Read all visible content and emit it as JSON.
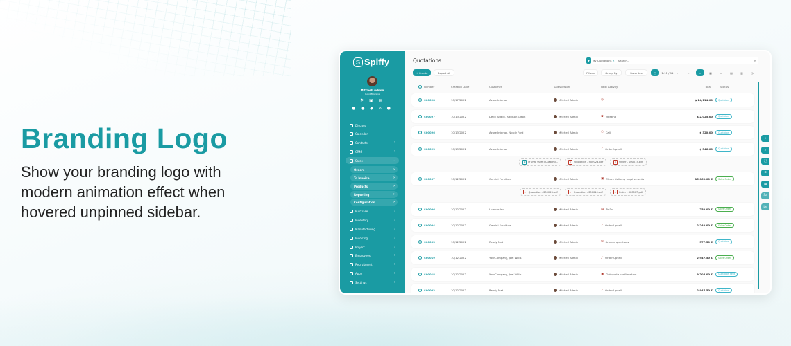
{
  "hero": {
    "title": "Branding Logo",
    "description": "Show your branding logo with modern animation effect when hovered unpinned sidebar."
  },
  "colors": {
    "brand": "#1a9ba3",
    "quotation_badge": "#3fb6c9",
    "sales_order_badge": "#4caf50"
  },
  "sidebar": {
    "logo": "Spiffy",
    "user_name": "Mitchell Admin",
    "greeting": "Good Morning",
    "items": [
      {
        "label": "Discuss",
        "icon": "chat-icon"
      },
      {
        "label": "Calendar",
        "icon": "calendar-icon"
      },
      {
        "label": "Contacts",
        "icon": "contacts-icon",
        "chevron": true
      },
      {
        "label": "CRM",
        "icon": "crm-icon",
        "chevron": true
      },
      {
        "label": "Sales",
        "icon": "sales-icon",
        "chevron": true,
        "active": true
      },
      {
        "label": "Orders",
        "sub": true
      },
      {
        "label": "To Invoice",
        "sub": true
      },
      {
        "label": "Products",
        "sub": true
      },
      {
        "label": "Reporting",
        "sub": true
      },
      {
        "label": "Configuration",
        "sub": true
      },
      {
        "label": "Purchase",
        "icon": "purchase-icon",
        "chevron": true
      },
      {
        "label": "Inventory",
        "icon": "inventory-icon",
        "chevron": true
      },
      {
        "label": "Manufacturing",
        "icon": "manufacturing-icon",
        "chevron": true
      },
      {
        "label": "Invoicing",
        "icon": "invoicing-icon",
        "chevron": true
      },
      {
        "label": "Project",
        "icon": "project-icon",
        "chevron": true
      },
      {
        "label": "Employees",
        "icon": "employees-icon",
        "chevron": true
      },
      {
        "label": "Recruitment",
        "icon": "recruitment-icon",
        "chevron": true
      },
      {
        "label": "Apps",
        "icon": "apps-icon",
        "chevron": true
      },
      {
        "label": "Settings",
        "icon": "settings-icon",
        "chevron": true
      }
    ]
  },
  "header": {
    "title": "Quotations",
    "create": "+ Create",
    "export": "Export All",
    "filter_tag": "My Quotations",
    "search_placeholder": "Search...",
    "filters": "Filters",
    "group_by": "Group By",
    "favorites": "Favorites",
    "pager": "1-11 / 11"
  },
  "columns": {
    "number": "Number",
    "date": "Creation Date",
    "customer": "Customer",
    "salesperson": "Salesperson",
    "activity": "Next Activity",
    "total": "Total",
    "status": "Status"
  },
  "rows": [
    {
      "number": "S00028",
      "date": "10/17/2022",
      "customer": "Azure Interior",
      "salesperson": "Mitchell Admin",
      "activity": "",
      "activity_icon": "clock-icon",
      "total": "$ 24,114.00",
      "status": "Quotation"
    },
    {
      "number": "S00027",
      "date": "10/13/2022",
      "customer": "Deco Addict, Addison Olson",
      "salesperson": "Mitchell Admin",
      "activity": "Meeting",
      "activity_icon": "meeting-icon",
      "total": "$ 2,025.00",
      "status": "Quotation"
    },
    {
      "number": "S00026",
      "date": "10/13/2022",
      "customer": "Azure Interior, Nicole Ford",
      "salesperson": "Mitchell Admin",
      "activity": "Call",
      "activity_icon": "phone-icon",
      "total": "$ 320.00",
      "status": "Quotation"
    },
    {
      "number": "S00023",
      "date": "10/13/2022",
      "customer": "Azure Interior",
      "salesperson": "Mitchell Admin",
      "activity": "Order Upsell",
      "activity_icon": "chart-icon",
      "total": "$ 546.00",
      "status": "Quotation",
      "attachments": [
        "[FURN_0096] Customi...",
        "Quotation - S00023.pdf",
        "Order - S00015.pdf"
      ]
    },
    {
      "number": "S00007",
      "date": "10/12/2022",
      "customer": "Gemini Furniture",
      "salesperson": "Mitchell Admin",
      "activity": "Check delivery requirements",
      "activity_icon": "calendar-icon",
      "total": "15,060.00 €",
      "status": "Sales Order",
      "attachments": [
        "Quotation - S00023.pdf",
        "Quotation - S00010.pdf",
        "Order - S00007.pdf"
      ]
    },
    {
      "number": "S00006",
      "date": "10/12/2022",
      "customer": "Lumber Inc",
      "salesperson": "Mitchell Admin",
      "activity": "To Do",
      "activity_icon": "todo-icon",
      "total": "750.00 €",
      "status": "Sales Order"
    },
    {
      "number": "S00004",
      "date": "10/12/2022",
      "customer": "Gemini Furniture",
      "salesperson": "Mitchell Admin",
      "activity": "Order Upsell",
      "activity_icon": "chart-icon",
      "total": "2,240.00 €",
      "status": "Sales Order"
    },
    {
      "number": "S00003",
      "date": "10/12/2022",
      "customer": "Ready Mat",
      "salesperson": "Mitchell Admin",
      "activity": "Answer questions",
      "activity_icon": "email-icon",
      "total": "377.50 €",
      "status": "Quotation"
    },
    {
      "number": "S00019",
      "date": "10/12/2022",
      "customer": "YourCompany, Joel Willis",
      "salesperson": "Mitchell Admin",
      "activity": "Order Upsell",
      "activity_icon": "chart-icon",
      "total": "2,947.50 €",
      "status": "Sales Order"
    },
    {
      "number": "S00018",
      "date": "10/12/2022",
      "customer": "YourCompany, Joel Willis",
      "salesperson": "Mitchell Admin",
      "activity": "Get quote confirmation",
      "activity_icon": "calendar-icon",
      "total": "9,705.00 €",
      "status": "Quotation Sent"
    },
    {
      "number": "S00002",
      "date": "10/12/2022",
      "customer": "Ready Mat",
      "salesperson": "Mitchell Admin",
      "activity": "Order Upsell",
      "activity_icon": "chart-icon",
      "total": "2,947.50 €",
      "status": "Quotation"
    }
  ],
  "floating": [
    "star-icon",
    "search-icon",
    "expand-icon",
    "zoom-icon",
    "grid-icon",
    "Sa",
    "Le"
  ]
}
